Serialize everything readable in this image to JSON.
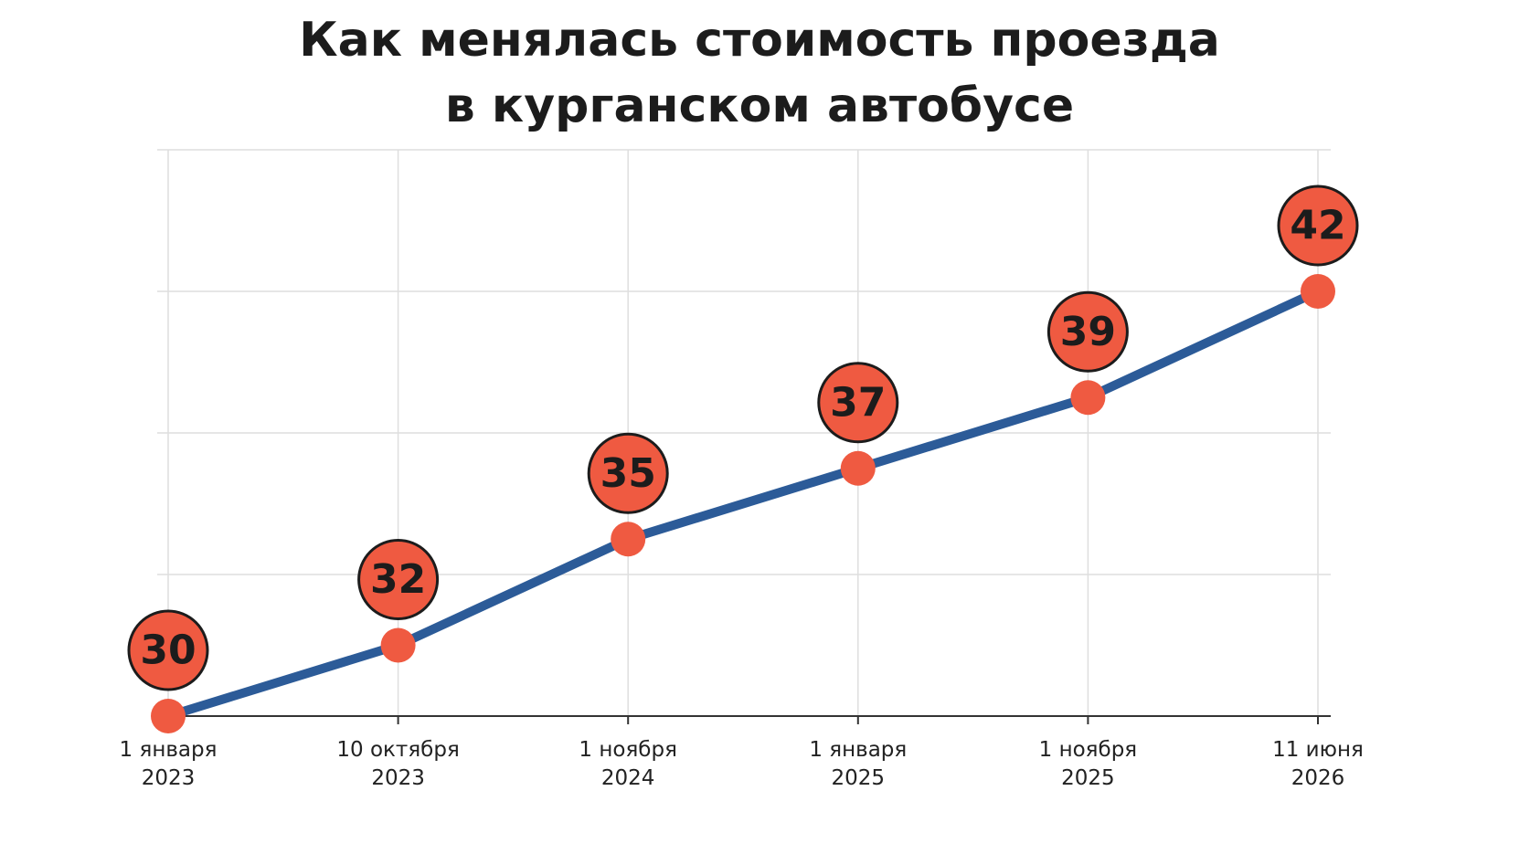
{
  "chart_data": {
    "type": "line",
    "title": "Как менялась стоимость проезда\nв курганском автобусе",
    "categories": [
      "1 января\n2023",
      "10 октября\n2023",
      "1 ноября\n2024",
      "1 января\n2025",
      "1 ноября\n2025",
      "11 июня\n2026"
    ],
    "values": [
      30,
      32,
      35,
      37,
      39,
      42
    ],
    "color": "#2c5b98",
    "marker_color": "#ef5a41",
    "ylim": [
      30,
      46
    ],
    "yticks": [
      30,
      34,
      38,
      42,
      46
    ],
    "grid": true
  }
}
